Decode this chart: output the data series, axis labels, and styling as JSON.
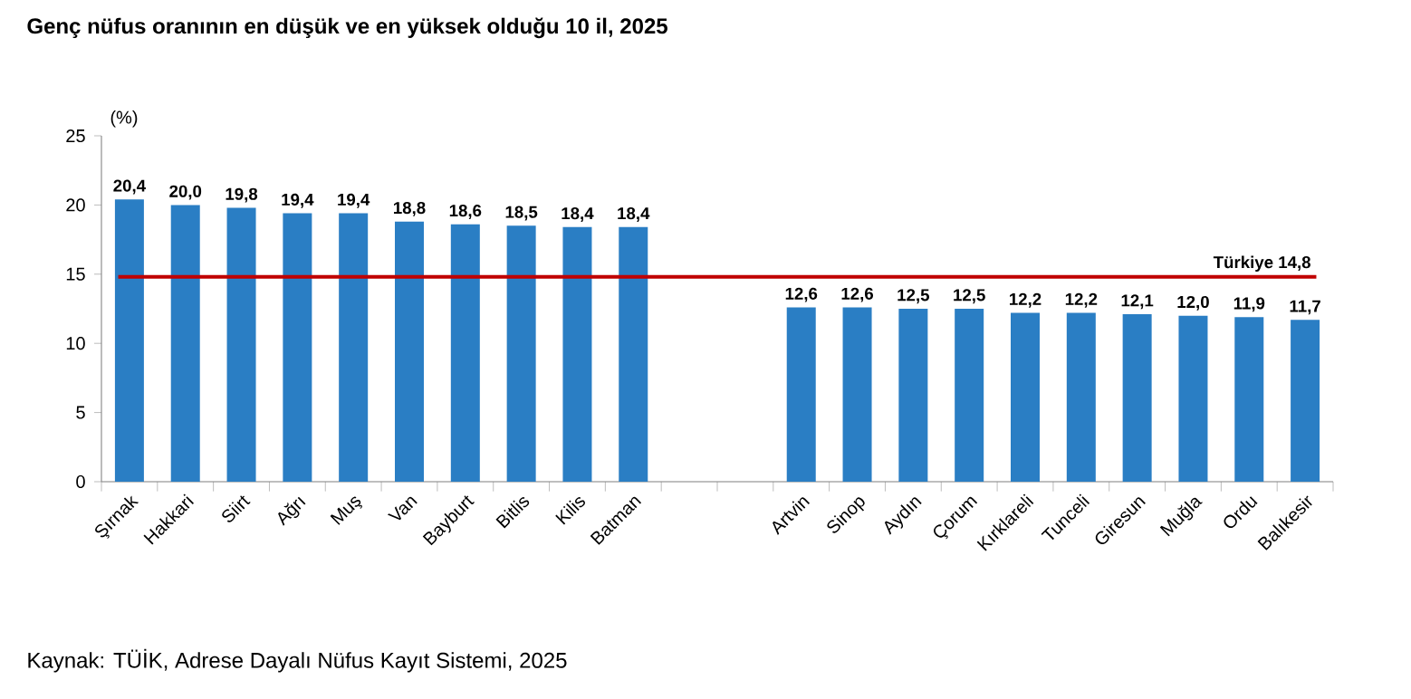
{
  "chart_data": {
    "type": "bar",
    "title": "Genç nüfus oranının en düşük ve en yüksek olduğu 10 il, 2025",
    "ylabel": "(%)",
    "categories": [
      "Şırnak",
      "Hakkari",
      "Siirt",
      "Ağrı",
      "Muş",
      "Van",
      "Bayburt",
      "Bitlis",
      "Kilis",
      "Batman",
      null,
      null,
      "Artvin",
      "Sinop",
      "Aydın",
      "Çorum",
      "Kırklareli",
      "Tunceli",
      "Giresun",
      "Muğla",
      "Ordu",
      "Balıkesir"
    ],
    "values": [
      20.4,
      20.0,
      19.8,
      19.4,
      19.4,
      18.8,
      18.6,
      18.5,
      18.4,
      18.4,
      null,
      null,
      12.6,
      12.6,
      12.5,
      12.5,
      12.2,
      12.2,
      12.1,
      12.0,
      11.9,
      11.7
    ],
    "value_labels": [
      "20,4",
      "20,0",
      "19,8",
      "19,4",
      "19,4",
      "18,8",
      "18,6",
      "18,5",
      "18,4",
      "18,4",
      null,
      null,
      "12,6",
      "12,6",
      "12,5",
      "12,5",
      "12,2",
      "12,2",
      "12,1",
      "12,0",
      "11,9",
      "11,7"
    ],
    "color": "#2a7ec4",
    "ylim": [
      0,
      25
    ],
    "yticks": [
      0,
      5,
      10,
      15,
      20,
      25
    ],
    "ref_lines": [
      {
        "axis": "y",
        "value": 14.8,
        "label": "Türkiye 14,8",
        "color": "#c00000"
      }
    ],
    "annotations": [
      "Kaynak: TÜİK, Adrese Dayalı Nüfus Kayıt Sistemi, 2025"
    ]
  }
}
